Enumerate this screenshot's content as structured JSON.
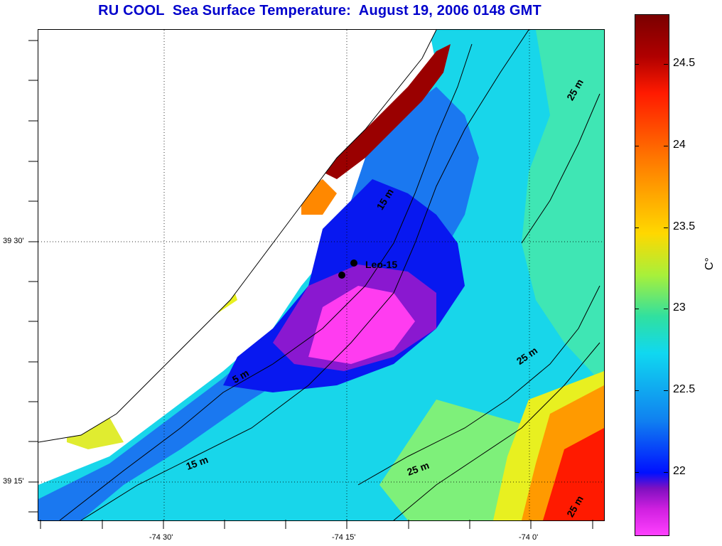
{
  "title": "RU COOL  Sea Surface Temperature:  August 19, 2006 0148 GMT",
  "y_axis_labels": [
    {
      "text": "39 30'"
    },
    {
      "text": "39 15'"
    }
  ],
  "x_axis_labels": [
    {
      "text": "-74 30'"
    },
    {
      "text": "-74 15'"
    },
    {
      "text": "-74 0'"
    }
  ],
  "colorbar": {
    "unit": "C°",
    "ticks": [
      "24.5",
      "24",
      "23.5",
      "23",
      "22.5",
      "22"
    ]
  },
  "station": {
    "label": "Leo-15"
  },
  "contours": [
    {
      "text": "25 m"
    },
    {
      "text": "15 m"
    },
    {
      "text": "25 m"
    },
    {
      "text": "5 m"
    },
    {
      "text": "15 m"
    },
    {
      "text": "25 m"
    },
    {
      "text": "25 m"
    }
  ],
  "colors": {
    "title": "#0000cc",
    "hot": "#8b0000",
    "cold": "#ff40ff"
  }
}
